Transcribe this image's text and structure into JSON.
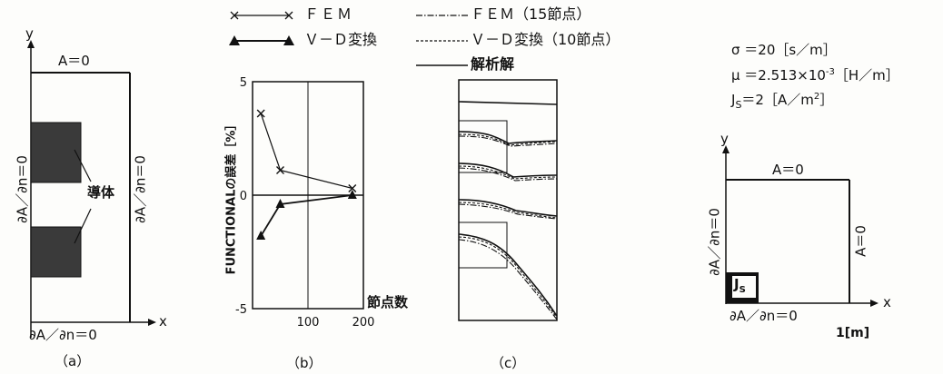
{
  "panel_a": {
    "caption": "（a）",
    "y_label": "y",
    "x_label": "x",
    "top_bc": "A＝0",
    "bottom_bc": "∂A／∂n＝0",
    "left_bc": "∂A／∂n＝0",
    "right_bc": "∂A／∂n＝0",
    "conductor_label": "導体"
  },
  "legend": {
    "fem": "ＦＥＭ",
    "vd": "Ｖ－Ｄ変換",
    "fem15": "ＦＥＭ（15節点）",
    "vd10": "Ｖ－Ｄ変換（10節点）",
    "analytic": "解析解"
  },
  "panel_b": {
    "caption": "（b）"
  },
  "panel_c": {
    "caption": "（c）"
  },
  "params": {
    "sigma": "σ ＝20［s／m］",
    "mu_main": "μ ＝2.513×10",
    "mu_exp": "-3",
    "mu_unit": "［H／m］",
    "js_J": "J",
    "js_s": "S",
    "js_rest": "＝2［A／m",
    "js_exp": "2",
    "js_close": "］"
  },
  "panel_d": {
    "y_label": "y",
    "x_label": "x",
    "top_bc": "A＝0",
    "right_bc": "A＝0",
    "left_bc": "∂A／∂n＝0",
    "bottom_bc": "∂A／∂n＝0",
    "source_J": "J",
    "source_s": "S",
    "length_label": "1[m]"
  },
  "colors": {
    "ink": "#111111",
    "conductor": "#3a3a3a",
    "background": "#fdfdfb"
  },
  "chart_data": {
    "type": "line",
    "xlabel": "節点数",
    "ylabel": "FUNCTIONALの誤差［%］",
    "xlim": [
      0,
      200
    ],
    "ylim": [
      -5,
      5
    ],
    "x_ticks": [
      "100",
      "200"
    ],
    "y_ticks": [
      "5",
      "0",
      "-5"
    ],
    "series": [
      {
        "name": "ＦＥＭ",
        "marker": "x",
        "x": [
          15,
          50,
          180
        ],
        "y": [
          3.6,
          1.1,
          0.3
        ]
      },
      {
        "name": "Ｖ－Ｄ変換",
        "marker": "triangle",
        "x": [
          15,
          50,
          180
        ],
        "y": [
          -1.8,
          -0.4,
          0.0
        ]
      }
    ]
  }
}
